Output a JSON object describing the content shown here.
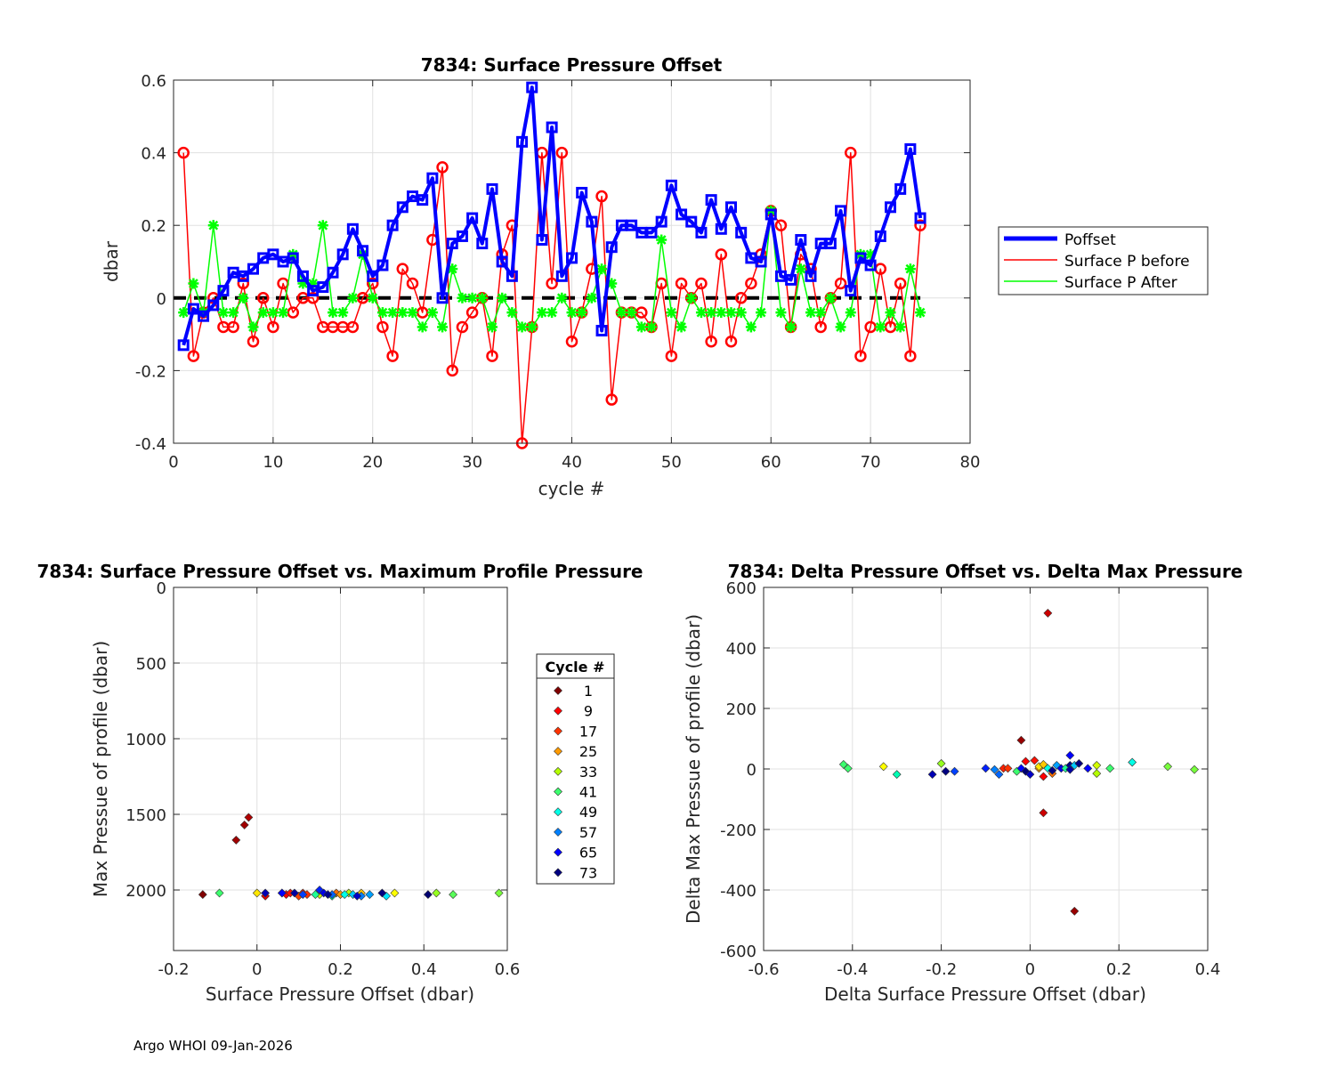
{
  "footer": "Argo WHOI 09-Jan-2026",
  "chart_data": [
    {
      "type": "line",
      "title": "7834: Surface Pressure Offset",
      "xlabel": "cycle #",
      "ylabel": "dbar",
      "xlim": [
        0,
        80
      ],
      "ylim": [
        -0.4,
        0.6
      ],
      "xticks": [
        0,
        10,
        20,
        30,
        40,
        50,
        60,
        70,
        80
      ],
      "yticks": [
        -0.4,
        -0.2,
        0,
        0.2,
        0.4,
        0.6
      ],
      "grid": true,
      "legend_position": "outside-right",
      "series": [
        {
          "name": "Poffset",
          "color": "#0000ff",
          "marker": "square",
          "x": [
            1,
            2,
            3,
            4,
            5,
            6,
            7,
            8,
            9,
            10,
            11,
            12,
            13,
            14,
            15,
            16,
            17,
            18,
            19,
            20,
            21,
            22,
            23,
            24,
            25,
            26,
            27,
            28,
            29,
            30,
            31,
            32,
            33,
            34,
            35,
            36,
            37,
            38,
            39,
            40,
            41,
            42,
            43,
            44,
            45,
            46,
            47,
            48,
            49,
            50,
            51,
            52,
            53,
            54,
            55,
            56,
            57,
            58,
            59,
            60,
            61,
            62,
            63,
            64,
            65,
            66,
            67,
            68,
            69,
            70,
            71,
            72,
            73,
            74,
            75
          ],
          "y": [
            -0.13,
            -0.03,
            -0.05,
            -0.02,
            0.02,
            0.07,
            0.06,
            0.08,
            0.11,
            0.12,
            0.1,
            0.11,
            0.06,
            0.02,
            0.03,
            0.07,
            0.12,
            0.19,
            0.13,
            0.06,
            0.09,
            0.2,
            0.25,
            0.28,
            0.27,
            0.33,
            0,
            0.15,
            0.17,
            0.22,
            0.15,
            0.3,
            0.1,
            0.06,
            0.43,
            0.58,
            0.16,
            0.47,
            0.06,
            0.11,
            0.29,
            0.21,
            -0.09,
            0.14,
            0.2,
            0.2,
            0.18,
            0.18,
            0.21,
            0.31,
            0.23,
            0.21,
            0.18,
            0.27,
            0.19,
            0.25,
            0.18,
            0.11,
            0.1,
            0.23,
            0.06,
            0.05,
            0.16,
            0.06,
            0.15,
            0.15,
            0.24,
            0.02,
            0.11,
            0.09,
            0.17,
            0.25,
            0.3,
            0.41,
            0.22
          ]
        },
        {
          "name": "Surface P before",
          "color": "#ff0000",
          "marker": "circle",
          "x": [
            1,
            2,
            3,
            4,
            5,
            6,
            7,
            8,
            9,
            10,
            11,
            12,
            13,
            14,
            15,
            16,
            17,
            18,
            19,
            20,
            21,
            22,
            23,
            24,
            25,
            26,
            27,
            28,
            29,
            30,
            31,
            32,
            33,
            34,
            35,
            36,
            37,
            38,
            39,
            40,
            41,
            42,
            43,
            44,
            45,
            46,
            47,
            48,
            49,
            50,
            51,
            52,
            53,
            54,
            55,
            56,
            57,
            58,
            59,
            60,
            61,
            62,
            63,
            64,
            65,
            66,
            67,
            68,
            69,
            70,
            71,
            72,
            73,
            74,
            75
          ],
          "y": [
            0.4,
            -0.16,
            -0.04,
            0,
            -0.08,
            -0.08,
            0.04,
            -0.12,
            0,
            -0.08,
            0.04,
            -0.04,
            0,
            0,
            -0.08,
            -0.08,
            -0.08,
            -0.08,
            0,
            0.04,
            -0.08,
            -0.16,
            0.08,
            0.04,
            -0.04,
            0.16,
            0.36,
            -0.2,
            -0.08,
            -0.04,
            0,
            -0.16,
            0.12,
            0.2,
            -0.4,
            -0.08,
            0.4,
            0.04,
            0.4,
            -0.12,
            -0.04,
            0.08,
            0.28,
            -0.28,
            -0.04,
            -0.04,
            -0.04,
            -0.08,
            0.04,
            -0.16,
            0.04,
            0,
            0.04,
            -0.12,
            0.12,
            -0.12,
            0,
            0.04,
            0.12,
            0.24,
            0.2,
            -0.08,
            0.12,
            0.08,
            -0.08,
            0,
            0.04,
            0.4,
            -0.16,
            -0.08,
            0.08,
            -0.08,
            0.04,
            -0.16,
            0.2
          ]
        },
        {
          "name": "Surface P After",
          "color": "#00ff00",
          "marker": "asterisk",
          "x": [
            1,
            2,
            3,
            4,
            5,
            6,
            7,
            8,
            9,
            10,
            11,
            12,
            13,
            14,
            15,
            16,
            17,
            18,
            19,
            20,
            21,
            22,
            23,
            24,
            25,
            26,
            27,
            28,
            29,
            30,
            31,
            32,
            33,
            34,
            35,
            36,
            37,
            38,
            39,
            40,
            41,
            42,
            43,
            44,
            45,
            46,
            47,
            48,
            49,
            50,
            51,
            52,
            53,
            54,
            55,
            56,
            57,
            58,
            59,
            60,
            61,
            62,
            63,
            64,
            65,
            66,
            67,
            68,
            69,
            70,
            71,
            72,
            73,
            74,
            75
          ],
          "y": [
            -0.04,
            0.04,
            -0.04,
            0.2,
            -0.04,
            -0.04,
            0,
            -0.08,
            -0.04,
            -0.04,
            -0.04,
            0.12,
            0.04,
            0.04,
            0.2,
            -0.04,
            -0.04,
            0,
            0.12,
            0,
            -0.04,
            -0.04,
            -0.04,
            -0.04,
            -0.08,
            -0.04,
            -0.08,
            0.08,
            0,
            0,
            0,
            -0.08,
            0,
            -0.04,
            -0.08,
            -0.08,
            -0.04,
            -0.04,
            0,
            -0.04,
            -0.04,
            0,
            0.08,
            0.04,
            -0.04,
            -0.04,
            -0.08,
            -0.08,
            0.16,
            -0.04,
            -0.08,
            0,
            -0.04,
            -0.04,
            -0.04,
            -0.04,
            -0.04,
            -0.08,
            -0.04,
            0.24,
            -0.04,
            -0.08,
            0.08,
            -0.04,
            -0.04,
            0,
            -0.08,
            -0.04,
            0.12,
            0.12,
            -0.08,
            -0.04,
            -0.08,
            0.08,
            -0.04
          ]
        },
        {
          "name": "zero reference",
          "color": "#000000",
          "style": "dashed",
          "x": [
            0,
            75
          ],
          "y": [
            0,
            0
          ],
          "in_legend": false
        }
      ]
    },
    {
      "type": "scatter",
      "title": "7834: Surface Pressure Offset vs. Maximum Profile Pressure",
      "xlabel": "Surface Pressure Offset (dbar)",
      "ylabel": "Max Pressue of profile (dbar)",
      "xlim": [
        -0.2,
        0.6
      ],
      "ylim": [
        0,
        2400
      ],
      "y_reversed": true,
      "xticks": [
        -0.2,
        0,
        0.2,
        0.4,
        0.6
      ],
      "xticklabels": [
        "-0.2",
        "0",
        "0.2",
        "0.4",
        "0.6"
      ],
      "yticks": [
        0,
        500,
        1000,
        1500,
        2000
      ],
      "grid": true,
      "legend_title": "Cycle #",
      "legend_entries": [
        "1",
        "9",
        "17",
        "25",
        "33",
        "41",
        "49",
        "57",
        "65",
        "73"
      ],
      "legend_colors": [
        "#800000",
        "#ff0000",
        "#ff3200",
        "#ff9a00",
        "#b4ff00",
        "#3cff6e",
        "#00ffe6",
        "#0080ff",
        "#0000ff",
        "#000080"
      ],
      "marker": "diamond",
      "points": [
        {
          "x": -0.13,
          "y": 2030,
          "color": "#800000"
        },
        {
          "x": -0.05,
          "y": 1670,
          "color": "#a00000"
        },
        {
          "x": -0.03,
          "y": 1570,
          "color": "#a00000"
        },
        {
          "x": -0.02,
          "y": 1520,
          "color": "#b00000"
        },
        {
          "x": 0.02,
          "y": 2040,
          "color": "#e00000"
        },
        {
          "x": 0.06,
          "y": 2020,
          "color": "#ff0000"
        },
        {
          "x": 0.07,
          "y": 2030,
          "color": "#ff0000"
        },
        {
          "x": 0.08,
          "y": 2020,
          "color": "#ff1000"
        },
        {
          "x": 0.11,
          "y": 2020,
          "color": "#ff2000"
        },
        {
          "x": 0.12,
          "y": 2030,
          "color": "#ff3200"
        },
        {
          "x": 0.1,
          "y": 2040,
          "color": "#ff4000"
        },
        {
          "x": 0.19,
          "y": 2020,
          "color": "#ff7000"
        },
        {
          "x": 0.2,
          "y": 2030,
          "color": "#ff9a00"
        },
        {
          "x": 0.25,
          "y": 2020,
          "color": "#ffc800"
        },
        {
          "x": 0,
          "y": 2020,
          "color": "#ffe600"
        },
        {
          "x": 0.33,
          "y": 2020,
          "color": "#ffff00"
        },
        {
          "x": 0.15,
          "y": 2030,
          "color": "#d2ff00"
        },
        {
          "x": 0.22,
          "y": 2020,
          "color": "#b4ff00"
        },
        {
          "x": 0.43,
          "y": 2020,
          "color": "#96ff1e"
        },
        {
          "x": 0.58,
          "y": 2020,
          "color": "#78ff3c"
        },
        {
          "x": 0.47,
          "y": 2030,
          "color": "#5aff5a"
        },
        {
          "x": -0.09,
          "y": 2020,
          "color": "#3cff6e"
        },
        {
          "x": 0.14,
          "y": 2030,
          "color": "#1eff96"
        },
        {
          "x": 0.18,
          "y": 2040,
          "color": "#00ffb4"
        },
        {
          "x": 0.21,
          "y": 2030,
          "color": "#00ffe6"
        },
        {
          "x": 0.31,
          "y": 2040,
          "color": "#00e6ff"
        },
        {
          "x": 0.23,
          "y": 2030,
          "color": "#00c8ff"
        },
        {
          "x": 0.27,
          "y": 2030,
          "color": "#00a0ff"
        },
        {
          "x": 0.25,
          "y": 2040,
          "color": "#0080ff"
        },
        {
          "x": 0.18,
          "y": 2030,
          "color": "#0064ff"
        },
        {
          "x": 0.11,
          "y": 2030,
          "color": "#0040ff"
        },
        {
          "x": 0.15,
          "y": 2000,
          "color": "#0020ff"
        },
        {
          "x": 0.06,
          "y": 2020,
          "color": "#0000ff"
        },
        {
          "x": 0.16,
          "y": 2020,
          "color": "#0000e6"
        },
        {
          "x": 0.24,
          "y": 2040,
          "color": "#0000c8"
        },
        {
          "x": 0.02,
          "y": 2020,
          "color": "#0000b4"
        },
        {
          "x": 0.09,
          "y": 2020,
          "color": "#0000a0"
        },
        {
          "x": 0.17,
          "y": 2030,
          "color": "#00008c"
        },
        {
          "x": 0.3,
          "y": 2020,
          "color": "#000080"
        },
        {
          "x": 0.41,
          "y": 2030,
          "color": "#000070"
        }
      ]
    },
    {
      "type": "scatter",
      "title": "7834: Delta Pressure Offset vs. Delta Max Pressure",
      "xlabel": "Delta Surface Pressure Offset (dbar)",
      "ylabel": "Delta Max Pressue of profile (dbar)",
      "xlim": [
        -0.6,
        0.4
      ],
      "ylim": [
        -600,
        600
      ],
      "xticks": [
        -0.6,
        -0.4,
        -0.2,
        0,
        0.2,
        0.4
      ],
      "xticklabels": [
        "-0.6",
        "-0.4",
        "-0.2",
        "0",
        "0.2",
        "0.4"
      ],
      "yticks": [
        -600,
        -400,
        -200,
        0,
        200,
        400,
        600
      ],
      "grid": true,
      "marker": "diamond",
      "points": [
        {
          "x": 0.04,
          "y": 515,
          "color": "#cc0000"
        },
        {
          "x": -0.02,
          "y": 95,
          "color": "#990000"
        },
        {
          "x": 0.1,
          "y": -470,
          "color": "#990000"
        },
        {
          "x": 0.03,
          "y": -145,
          "color": "#cc0000"
        },
        {
          "x": -0.42,
          "y": 15,
          "color": "#3cff6e"
        },
        {
          "x": -0.41,
          "y": 2,
          "color": "#3cff6e"
        },
        {
          "x": -0.33,
          "y": 8,
          "color": "#ffff00"
        },
        {
          "x": -0.3,
          "y": -18,
          "color": "#00ffb4"
        },
        {
          "x": -0.2,
          "y": 18,
          "color": "#96ff1e"
        },
        {
          "x": -0.22,
          "y": -18,
          "color": "#0000b4"
        },
        {
          "x": -0.19,
          "y": -8,
          "color": "#000080"
        },
        {
          "x": -0.17,
          "y": -8,
          "color": "#0040ff"
        },
        {
          "x": -0.1,
          "y": 2,
          "color": "#0020ff"
        },
        {
          "x": -0.08,
          "y": -2,
          "color": "#0080ff"
        },
        {
          "x": -0.07,
          "y": -18,
          "color": "#0064ff"
        },
        {
          "x": -0.06,
          "y": 2,
          "color": "#ff2000"
        },
        {
          "x": -0.05,
          "y": 2,
          "color": "#ff3200"
        },
        {
          "x": -0.03,
          "y": -8,
          "color": "#3cff6e"
        },
        {
          "x": -0.02,
          "y": 2,
          "color": "#0000ff"
        },
        {
          "x": -0.01,
          "y": 25,
          "color": "#ff0000"
        },
        {
          "x": -0.01,
          "y": -8,
          "color": "#000070"
        },
        {
          "x": 0,
          "y": -18,
          "color": "#0000c8"
        },
        {
          "x": 0.01,
          "y": 28,
          "color": "#ff1000"
        },
        {
          "x": 0.02,
          "y": 2,
          "color": "#ff9a00"
        },
        {
          "x": 0.02,
          "y": 8,
          "color": "#ffe600"
        },
        {
          "x": 0.03,
          "y": -25,
          "color": "#ff0000"
        },
        {
          "x": 0.03,
          "y": 15,
          "color": "#ffc800"
        },
        {
          "x": 0.04,
          "y": 2,
          "color": "#00ffe6"
        },
        {
          "x": 0.05,
          "y": -15,
          "color": "#ff7000"
        },
        {
          "x": 0.05,
          "y": -5,
          "color": "#000080"
        },
        {
          "x": 0.06,
          "y": 12,
          "color": "#00a0ff"
        },
        {
          "x": 0.07,
          "y": 2,
          "color": "#0000e6"
        },
        {
          "x": 0.08,
          "y": 2,
          "color": "#1eff96"
        },
        {
          "x": 0.09,
          "y": 45,
          "color": "#0000ff"
        },
        {
          "x": 0.09,
          "y": 12,
          "color": "#00008c"
        },
        {
          "x": 0.09,
          "y": -2,
          "color": "#0000a0"
        },
        {
          "x": 0.1,
          "y": 12,
          "color": "#00c8ff"
        },
        {
          "x": 0.11,
          "y": 18,
          "color": "#000080"
        },
        {
          "x": 0.13,
          "y": 2,
          "color": "#0000ff"
        },
        {
          "x": 0.15,
          "y": 12,
          "color": "#d2ff00"
        },
        {
          "x": 0.15,
          "y": -15,
          "color": "#b4ff00"
        },
        {
          "x": 0.18,
          "y": 2,
          "color": "#3cff6e"
        },
        {
          "x": 0.23,
          "y": 22,
          "color": "#00ffe6"
        },
        {
          "x": 0.31,
          "y": 8,
          "color": "#78ff3c"
        },
        {
          "x": 0.37,
          "y": -2,
          "color": "#78ff3c"
        }
      ]
    }
  ]
}
